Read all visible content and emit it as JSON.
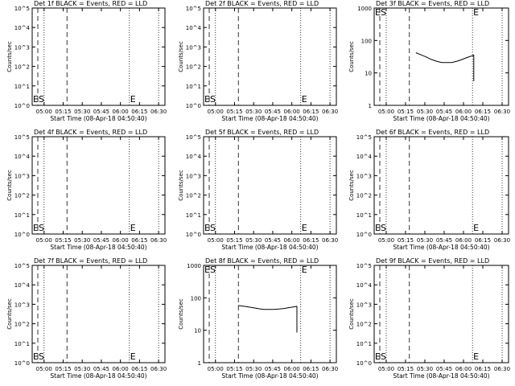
{
  "figure": {
    "background": "#ffffff",
    "axis_color": "#000000",
    "event_color": "#000000",
    "lld_color": "#ff0000"
  },
  "chart_data": [
    {
      "type": "line",
      "title": "Det 1f BLACK = Events, RED = LLD",
      "xlabel": "Start Time (08-Apr-18 04:50:40)",
      "ylabel": "Counts/sec",
      "yscale": "log",
      "ylim": [
        1,
        100000
      ],
      "yticks": [
        "10^0",
        "10^1",
        "10^2",
        "10^3",
        "10^4",
        "10^5"
      ],
      "xticks": [
        "05:00",
        "05:15",
        "05:30",
        "05:45",
        "06:00",
        "06:15",
        "06:30"
      ],
      "markers": [
        "ES",
        "E"
      ],
      "series": []
    },
    {
      "type": "line",
      "title": "Det 2f BLACK = Events, RED = LLD",
      "xlabel": "Start Time (08-Apr-18 04:50:40)",
      "ylabel": "Counts/sec",
      "yscale": "log",
      "ylim": [
        1,
        100000
      ],
      "yticks": [
        "10^0",
        "10^1",
        "10^2",
        "10^3",
        "10^4",
        "10^5"
      ],
      "xticks": [
        "05:00",
        "05:15",
        "05:30",
        "05:45",
        "06:00",
        "06:15",
        "06:30"
      ],
      "markers": [
        "ES",
        "E"
      ],
      "series": []
    },
    {
      "type": "line",
      "title": "Det 3f BLACK = Events, RED = LLD",
      "xlabel": "Start Time (08-Apr-18 04:50:40)",
      "ylabel": "Counts/sec",
      "yscale": "log",
      "ylim": [
        1,
        1000
      ],
      "yticks": [
        "1",
        "10",
        "100",
        "1000"
      ],
      "xticks": [
        "05:00",
        "05:15",
        "05:30",
        "05:45",
        "06:00",
        "06:15",
        "06:30"
      ],
      "markers": [
        "ES",
        "E"
      ],
      "series": [
        {
          "x": [
            "05:23",
            "05:27",
            "05:31",
            "05:35",
            "05:39",
            "05:43",
            "05:47",
            "05:51",
            "05:55",
            "05:59",
            "06:03",
            "06:07",
            "06:08"
          ],
          "y": [
            42,
            36,
            31,
            26,
            23,
            21,
            21,
            21,
            23,
            26,
            30,
            34,
            36
          ]
        }
      ]
    },
    {
      "type": "line",
      "title": "Det 4f BLACK = Events, RED = LLD",
      "xlabel": "Start Time (08-Apr-18 04:50:40)",
      "ylabel": "Counts/sec",
      "yscale": "log",
      "ylim": [
        1,
        100000
      ],
      "yticks": [
        "10^0",
        "10^1",
        "10^2",
        "10^3",
        "10^4",
        "10^5"
      ],
      "xticks": [
        "05:00",
        "05:15",
        "05:30",
        "05:45",
        "06:00",
        "06:15",
        "06:30"
      ],
      "markers": [
        "ES",
        "E"
      ],
      "series": []
    },
    {
      "type": "line",
      "title": "Det 5f BLACK = Events, RED = LLD",
      "xlabel": "Start Time (08-Apr-18 04:50:40)",
      "ylabel": "Counts/sec",
      "yscale": "log",
      "ylim": [
        1,
        100000
      ],
      "yticks": [
        "10^0",
        "10^1",
        "10^2",
        "10^3",
        "10^4",
        "10^5"
      ],
      "xticks": [
        "05:00",
        "05:15",
        "05:30",
        "05:45",
        "06:00",
        "06:15",
        "06:30"
      ],
      "markers": [
        "ES",
        "E"
      ],
      "series": []
    },
    {
      "type": "line",
      "title": "Det 6f BLACK = Events, RED = LLD",
      "xlabel": "Start Time (08-Apr-18 04:50:40)",
      "ylabel": "Counts/sec",
      "yscale": "log",
      "ylim": [
        1,
        100000
      ],
      "yticks": [
        "10^0",
        "10^1",
        "10^2",
        "10^3",
        "10^4",
        "10^5"
      ],
      "xticks": [
        "05:00",
        "05:15",
        "05:30",
        "05:45",
        "06:00",
        "06:15",
        "06:30"
      ],
      "markers": [
        "ES",
        "E"
      ],
      "series": []
    },
    {
      "type": "line",
      "title": "Det 7f BLACK = Events, RED = LLD",
      "xlabel": "Start Time (08-Apr-18 04:50:40)",
      "ylabel": "Counts/sec",
      "yscale": "log",
      "ylim": [
        1,
        100000
      ],
      "yticks": [
        "10^0",
        "10^1",
        "10^2",
        "10^3",
        "10^4",
        "10^5"
      ],
      "xticks": [
        "05:00",
        "05:15",
        "05:30",
        "05:45",
        "06:00",
        "06:15",
        "06:30"
      ],
      "markers": [
        "ES",
        "E"
      ],
      "series": []
    },
    {
      "type": "line",
      "title": "Det 8f BLACK = Events, RED = LLD",
      "xlabel": "Start Time (08-Apr-18 04:50:40)",
      "ylabel": "Counts/sec",
      "yscale": "log",
      "ylim": [
        1,
        1000
      ],
      "yticks": [
        "1",
        "10",
        "100",
        "1000"
      ],
      "xticks": [
        "05:00",
        "05:15",
        "05:30",
        "05:45",
        "06:00",
        "06:15",
        "06:30"
      ],
      "markers": [
        "ES",
        "E"
      ],
      "series": [
        {
          "x": [
            "05:18",
            "05:22",
            "05:26",
            "05:30",
            "05:34",
            "05:38",
            "05:42",
            "05:46",
            "05:50",
            "05:54",
            "05:58",
            "06:02",
            "06:04"
          ],
          "y": [
            58,
            55,
            52,
            49,
            46,
            44,
            44,
            44,
            45,
            47,
            50,
            53,
            55
          ]
        }
      ]
    },
    {
      "type": "line",
      "title": "Det 9f BLACK = Events, RED = LLD",
      "xlabel": "Start Time (08-Apr-18 04:50:40)",
      "ylabel": "Counts/sec",
      "yscale": "log",
      "ylim": [
        1,
        100000
      ],
      "yticks": [
        "10^0",
        "10^1",
        "10^2",
        "10^3",
        "10^4",
        "10^5"
      ],
      "xticks": [
        "05:00",
        "05:15",
        "05:30",
        "05:45",
        "06:00",
        "06:15",
        "06:30"
      ],
      "markers": [
        "ES",
        "E"
      ],
      "series": []
    }
  ]
}
